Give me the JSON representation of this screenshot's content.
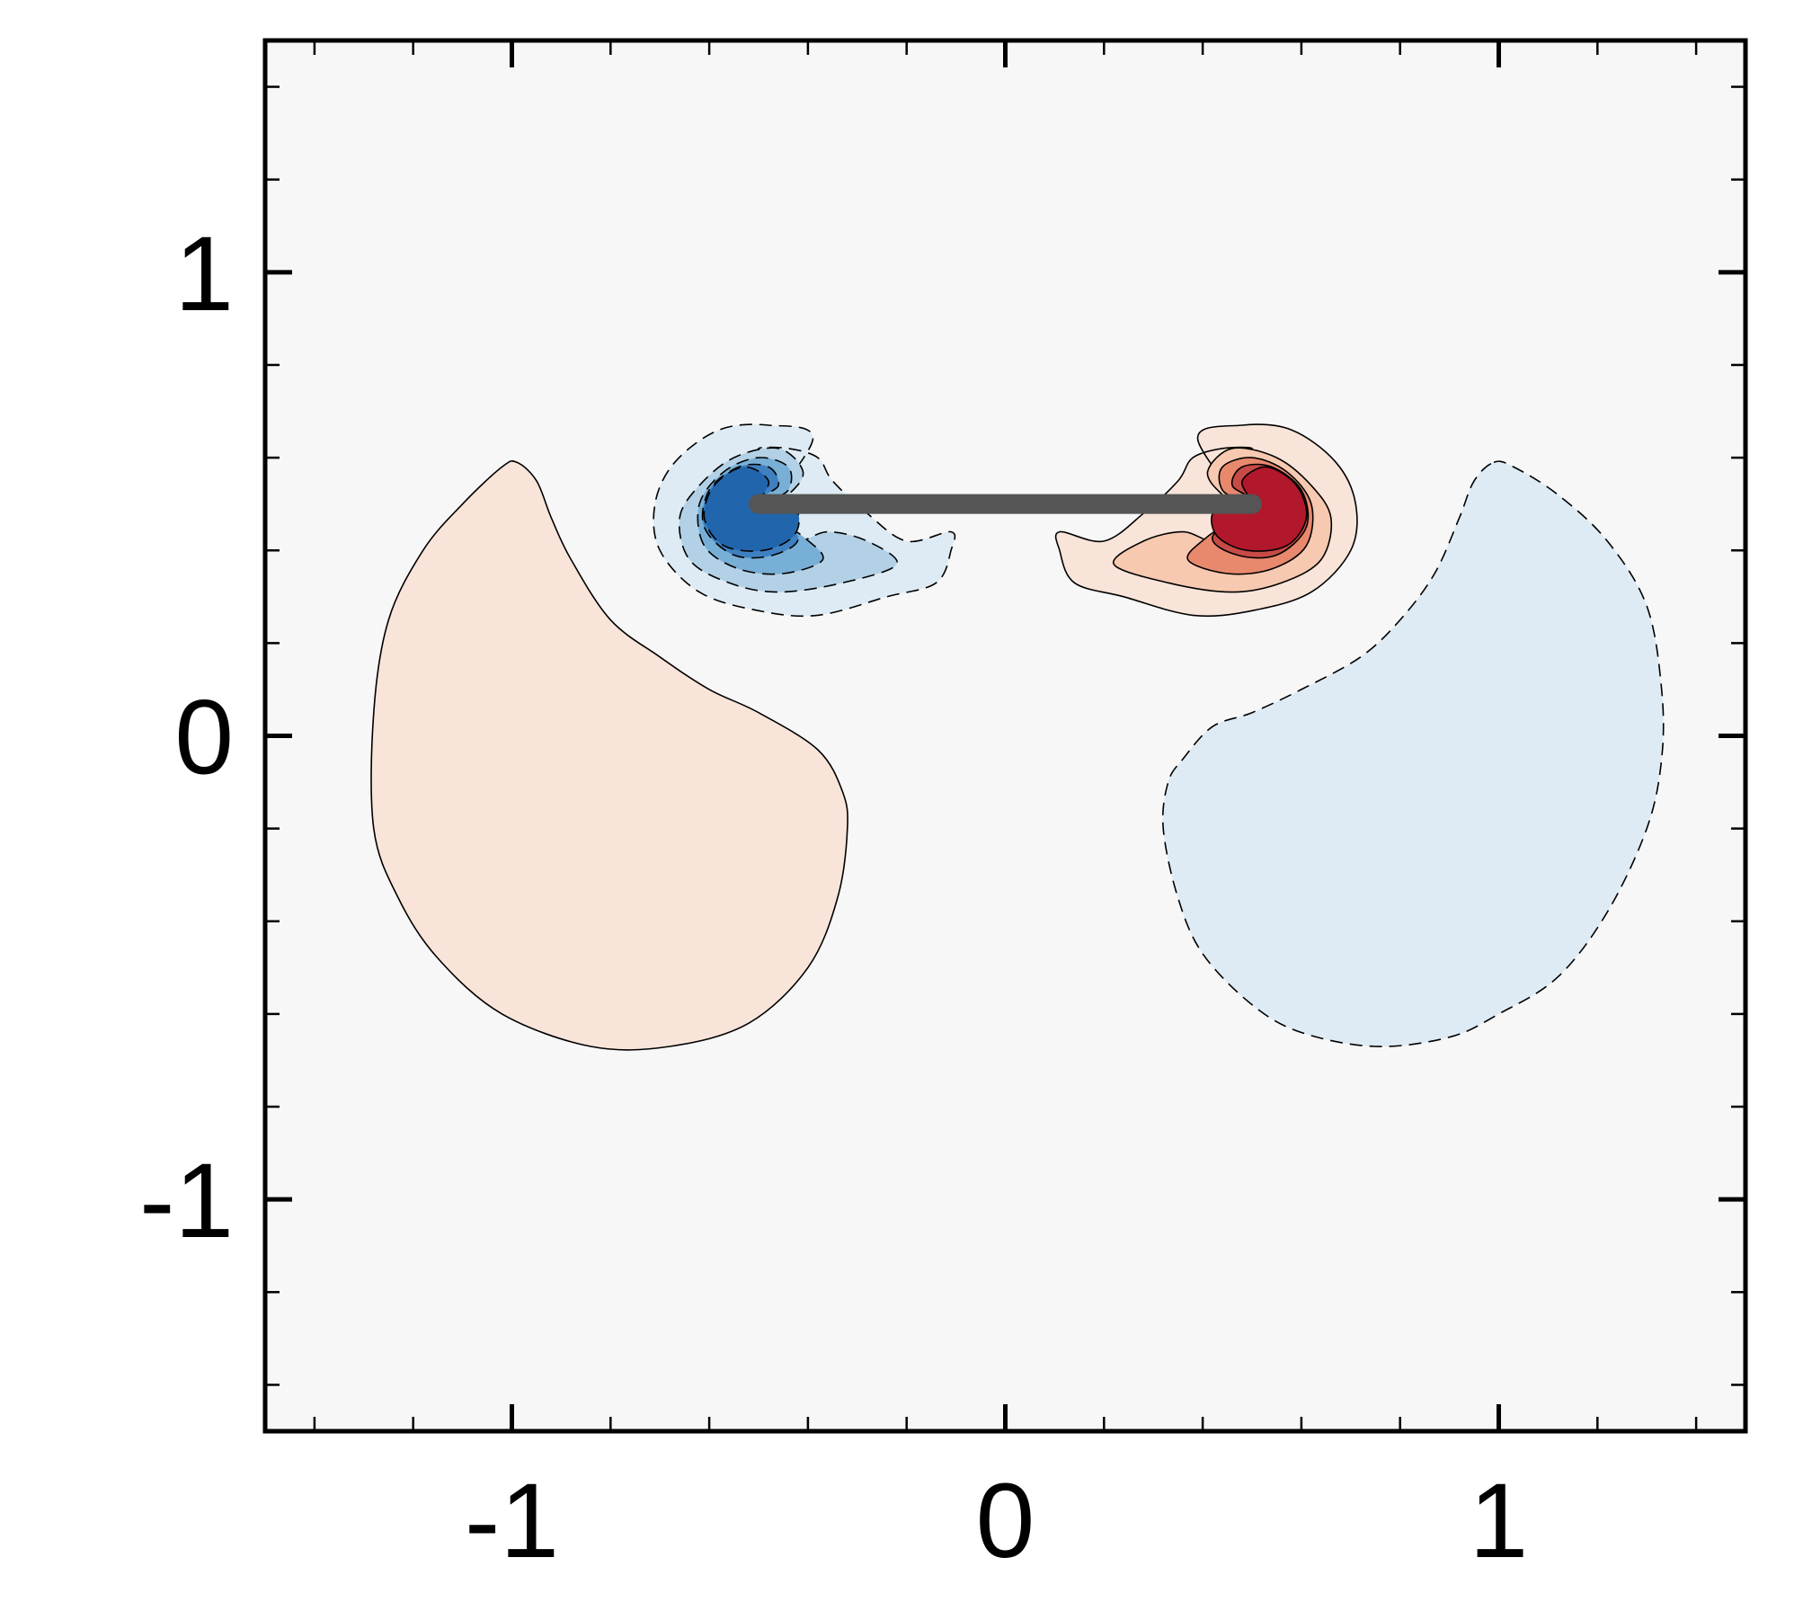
{
  "chart_data": {
    "type": "contour",
    "title": "",
    "xlabel": "",
    "ylabel": "",
    "xlim": [
      -1.5,
      1.5
    ],
    "ylim": [
      -1.5,
      1.5
    ],
    "x_major_ticks": [
      -1,
      0,
      1
    ],
    "x_tick_labels": [
      "-1",
      "0",
      "1"
    ],
    "y_major_ticks": [
      -1,
      0,
      1
    ],
    "y_tick_labels": [
      "-1",
      "0",
      "1"
    ],
    "minor_tick_step": 0.2,
    "grid": false,
    "legend": "none",
    "colors": {
      "background": "#f7f7f7",
      "positive": [
        "#f9e4d9",
        "#f6c9b0",
        "#e8896e",
        "#c64a45",
        "#b2182b"
      ],
      "negative": [
        "#deebf4",
        "#b3d1e6",
        "#78afd6",
        "#3f80c0",
        "#2166ac"
      ],
      "plate": "#555555",
      "contour_line": "#000000"
    },
    "plate": {
      "x": [
        -0.5,
        0.5
      ],
      "y": 0.5
    },
    "regions": [
      {
        "name": "positive-large-lobe",
        "sign": "positive",
        "level": 1,
        "outline": [
          [
            -0.99,
            0.59
          ],
          [
            -0.95,
            0.55
          ],
          [
            -0.92,
            0.47
          ],
          [
            -0.88,
            0.38
          ],
          [
            -0.8,
            0.25
          ],
          [
            -0.7,
            0.17
          ],
          [
            -0.6,
            0.1
          ],
          [
            -0.5,
            0.05
          ],
          [
            -0.38,
            -0.03
          ],
          [
            -0.33,
            -0.12
          ],
          [
            -0.32,
            -0.2
          ],
          [
            -0.34,
            -0.35
          ],
          [
            -0.4,
            -0.5
          ],
          [
            -0.52,
            -0.62
          ],
          [
            -0.68,
            -0.67
          ],
          [
            -0.84,
            -0.67
          ],
          [
            -1.02,
            -0.6
          ],
          [
            -1.15,
            -0.48
          ],
          [
            -1.23,
            -0.35
          ],
          [
            -1.28,
            -0.2
          ],
          [
            -1.28,
            0.05
          ],
          [
            -1.25,
            0.25
          ],
          [
            -1.18,
            0.4
          ],
          [
            -1.1,
            0.5
          ],
          [
            -1.02,
            0.58
          ]
        ]
      },
      {
        "name": "negative-large-lobe",
        "sign": "negative",
        "level": 1,
        "outline": [
          [
            0.99,
            0.59
          ],
          [
            1.03,
            0.58
          ],
          [
            1.12,
            0.52
          ],
          [
            1.22,
            0.42
          ],
          [
            1.3,
            0.28
          ],
          [
            1.33,
            0.1
          ],
          [
            1.33,
            -0.05
          ],
          [
            1.3,
            -0.2
          ],
          [
            1.22,
            -0.38
          ],
          [
            1.12,
            -0.52
          ],
          [
            1.0,
            -0.6
          ],
          [
            0.9,
            -0.65
          ],
          [
            0.75,
            -0.67
          ],
          [
            0.6,
            -0.64
          ],
          [
            0.5,
            -0.58
          ],
          [
            0.4,
            -0.47
          ],
          [
            0.35,
            -0.35
          ],
          [
            0.32,
            -0.2
          ],
          [
            0.33,
            -0.1
          ],
          [
            0.36,
            -0.05
          ],
          [
            0.42,
            0.02
          ],
          [
            0.5,
            0.05
          ],
          [
            0.6,
            0.1
          ],
          [
            0.72,
            0.17
          ],
          [
            0.8,
            0.25
          ],
          [
            0.87,
            0.35
          ],
          [
            0.92,
            0.47
          ],
          [
            0.95,
            0.55
          ]
        ]
      },
      {
        "name": "negative-vortex-outer",
        "sign": "negative",
        "level": 1,
        "outline": [
          [
            -0.5,
            0.47
          ],
          [
            -0.45,
            0.52
          ],
          [
            -0.43,
            0.57
          ],
          [
            -0.45,
            0.6
          ],
          [
            -0.5,
            0.62
          ],
          [
            -0.44,
            0.62
          ],
          [
            -0.38,
            0.6
          ],
          [
            -0.35,
            0.55
          ],
          [
            -0.28,
            0.48
          ],
          [
            -0.2,
            0.42
          ],
          [
            -0.11,
            0.44
          ],
          [
            -0.11,
            0.4
          ],
          [
            -0.14,
            0.33
          ],
          [
            -0.24,
            0.3
          ],
          [
            -0.38,
            0.26
          ],
          [
            -0.5,
            0.27
          ],
          [
            -0.62,
            0.31
          ],
          [
            -0.7,
            0.4
          ],
          [
            -0.71,
            0.5
          ],
          [
            -0.67,
            0.59
          ],
          [
            -0.58,
            0.66
          ],
          [
            -0.48,
            0.67
          ],
          [
            -0.39,
            0.64
          ]
        ]
      },
      {
        "name": "negative-vortex-level-2",
        "sign": "negative",
        "level": 2,
        "outline": [
          [
            -0.5,
            0.48
          ],
          [
            -0.44,
            0.52
          ],
          [
            -0.41,
            0.57
          ],
          [
            -0.46,
            0.62
          ],
          [
            -0.55,
            0.6
          ],
          [
            -0.62,
            0.54
          ],
          [
            -0.66,
            0.47
          ],
          [
            -0.64,
            0.38
          ],
          [
            -0.56,
            0.33
          ],
          [
            -0.46,
            0.31
          ],
          [
            -0.33,
            0.33
          ],
          [
            -0.22,
            0.37
          ],
          [
            -0.28,
            0.42
          ],
          [
            -0.36,
            0.44
          ],
          [
            -0.43,
            0.42
          ]
        ]
      },
      {
        "name": "negative-vortex-level-3",
        "sign": "negative",
        "level": 3,
        "outline": [
          [
            -0.49,
            0.49
          ],
          [
            -0.44,
            0.53
          ],
          [
            -0.44,
            0.58
          ],
          [
            -0.5,
            0.6
          ],
          [
            -0.57,
            0.57
          ],
          [
            -0.62,
            0.5
          ],
          [
            -0.61,
            0.41
          ],
          [
            -0.54,
            0.36
          ],
          [
            -0.45,
            0.35
          ],
          [
            -0.37,
            0.38
          ],
          [
            -0.41,
            0.43
          ]
        ]
      },
      {
        "name": "negative-vortex-level-4",
        "sign": "negative",
        "level": 4,
        "outline": [
          [
            -0.5,
            0.5
          ],
          [
            -0.46,
            0.54
          ],
          [
            -0.48,
            0.58
          ],
          [
            -0.54,
            0.58
          ],
          [
            -0.6,
            0.53
          ],
          [
            -0.61,
            0.45
          ],
          [
            -0.55,
            0.39
          ],
          [
            -0.47,
            0.39
          ],
          [
            -0.42,
            0.43
          ]
        ]
      },
      {
        "name": "negative-vortex-core",
        "sign": "negative",
        "level": 5,
        "outline": [
          [
            -0.5,
            0.5
          ],
          [
            -0.48,
            0.55
          ],
          [
            -0.53,
            0.58
          ],
          [
            -0.59,
            0.54
          ],
          [
            -0.61,
            0.47
          ],
          [
            -0.57,
            0.41
          ],
          [
            -0.49,
            0.4
          ],
          [
            -0.43,
            0.43
          ],
          [
            -0.42,
            0.48
          ],
          [
            -0.46,
            0.51
          ]
        ]
      },
      {
        "name": "positive-vortex-outer",
        "sign": "positive",
        "level": 1,
        "outline": [
          [
            0.5,
            0.47
          ],
          [
            0.45,
            0.52
          ],
          [
            0.43,
            0.57
          ],
          [
            0.45,
            0.6
          ],
          [
            0.5,
            0.62
          ],
          [
            0.44,
            0.62
          ],
          [
            0.38,
            0.6
          ],
          [
            0.35,
            0.55
          ],
          [
            0.28,
            0.48
          ],
          [
            0.2,
            0.42
          ],
          [
            0.11,
            0.44
          ],
          [
            0.11,
            0.4
          ],
          [
            0.14,
            0.33
          ],
          [
            0.24,
            0.3
          ],
          [
            0.38,
            0.26
          ],
          [
            0.5,
            0.27
          ],
          [
            0.62,
            0.31
          ],
          [
            0.7,
            0.4
          ],
          [
            0.71,
            0.5
          ],
          [
            0.67,
            0.59
          ],
          [
            0.58,
            0.66
          ],
          [
            0.48,
            0.67
          ],
          [
            0.39,
            0.64
          ]
        ]
      },
      {
        "name": "positive-vortex-level-2",
        "sign": "positive",
        "level": 2,
        "outline": [
          [
            0.5,
            0.48
          ],
          [
            0.44,
            0.52
          ],
          [
            0.41,
            0.57
          ],
          [
            0.46,
            0.62
          ],
          [
            0.55,
            0.6
          ],
          [
            0.62,
            0.54
          ],
          [
            0.66,
            0.47
          ],
          [
            0.64,
            0.38
          ],
          [
            0.56,
            0.33
          ],
          [
            0.46,
            0.31
          ],
          [
            0.33,
            0.33
          ],
          [
            0.22,
            0.37
          ],
          [
            0.28,
            0.42
          ],
          [
            0.36,
            0.44
          ],
          [
            0.43,
            0.42
          ]
        ]
      },
      {
        "name": "positive-vortex-level-3",
        "sign": "positive",
        "level": 3,
        "outline": [
          [
            0.49,
            0.49
          ],
          [
            0.44,
            0.53
          ],
          [
            0.44,
            0.58
          ],
          [
            0.5,
            0.6
          ],
          [
            0.57,
            0.57
          ],
          [
            0.62,
            0.5
          ],
          [
            0.61,
            0.41
          ],
          [
            0.54,
            0.36
          ],
          [
            0.45,
            0.35
          ],
          [
            0.37,
            0.38
          ],
          [
            0.41,
            0.43
          ]
        ]
      },
      {
        "name": "positive-vortex-level-4",
        "sign": "positive",
        "level": 4,
        "outline": [
          [
            0.5,
            0.5
          ],
          [
            0.46,
            0.54
          ],
          [
            0.48,
            0.58
          ],
          [
            0.54,
            0.58
          ],
          [
            0.6,
            0.53
          ],
          [
            0.61,
            0.45
          ],
          [
            0.55,
            0.39
          ],
          [
            0.47,
            0.39
          ],
          [
            0.42,
            0.43
          ]
        ]
      },
      {
        "name": "positive-vortex-core",
        "sign": "positive",
        "level": 5,
        "outline": [
          [
            0.5,
            0.5
          ],
          [
            0.48,
            0.55
          ],
          [
            0.53,
            0.58
          ],
          [
            0.59,
            0.54
          ],
          [
            0.61,
            0.47
          ],
          [
            0.57,
            0.41
          ],
          [
            0.49,
            0.4
          ],
          [
            0.43,
            0.43
          ],
          [
            0.42,
            0.48
          ],
          [
            0.46,
            0.51
          ]
        ]
      }
    ]
  }
}
